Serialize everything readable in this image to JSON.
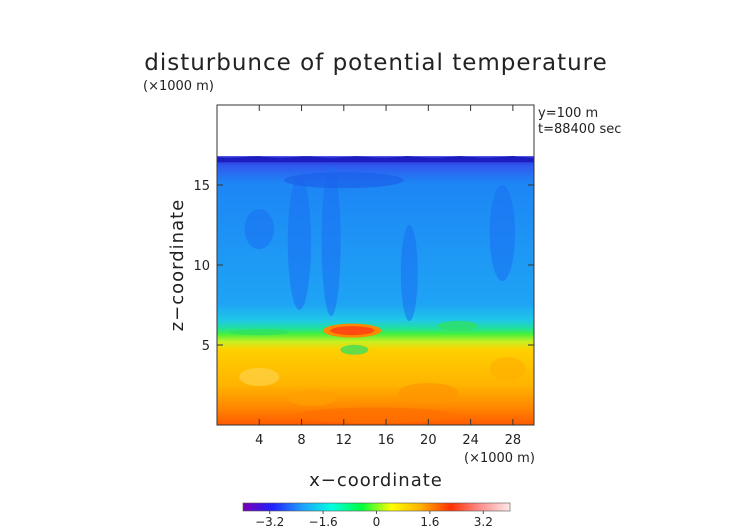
{
  "chart_data": {
    "type": "heatmap",
    "title": "disturbunce of potential temperature",
    "ylabel": "z−coordinate",
    "xlabel": "x−coordinate",
    "x_scale_label": "(×1000 m)",
    "y_scale_label": "(×1000 m)",
    "annotations": [
      "y=100 m",
      "t=88400 sec"
    ],
    "xlim": [
      0,
      30
    ],
    "ylim": [
      0,
      20
    ],
    "xticks": [
      4,
      8,
      12,
      16,
      20,
      24,
      28
    ],
    "yticks": [
      5,
      10,
      15
    ],
    "xtick_labels": [
      "4",
      "8",
      "12",
      "16",
      "20",
      "24",
      "28"
    ],
    "ytick_labels": [
      "5",
      "10",
      "15"
    ],
    "colorbar": {
      "range": [
        -4,
        4
      ],
      "ticks": [
        -3.2,
        -1.6,
        0,
        1.6,
        3.2
      ],
      "tick_labels": [
        "−3.2",
        "−1.6",
        "0",
        "1.6",
        "3.2"
      ],
      "colors": [
        "#7a00b4",
        "#2020ff",
        "#1fa0ff",
        "#00ffe0",
        "#00ff40",
        "#ffff00",
        "#ffb000",
        "#ff3000",
        "#ff9090",
        "#ffe8e8"
      ]
    },
    "field_description": [
      {
        "region": "z > 16.8",
        "value": "no data (white)"
      },
      {
        "region": "z 15–16.8 top",
        "value": -3.0
      },
      {
        "region": "z 7–15",
        "value": -1.5
      },
      {
        "region": "z 6–7",
        "value": 0.2
      },
      {
        "region": "z 0–5.5",
        "value": 1.3
      },
      {
        "region": "z 0–2 near ground",
        "value": 2.0
      },
      {
        "region": "x 10–14, z 5.5–6.3 bubble",
        "value": 2.2
      }
    ]
  }
}
